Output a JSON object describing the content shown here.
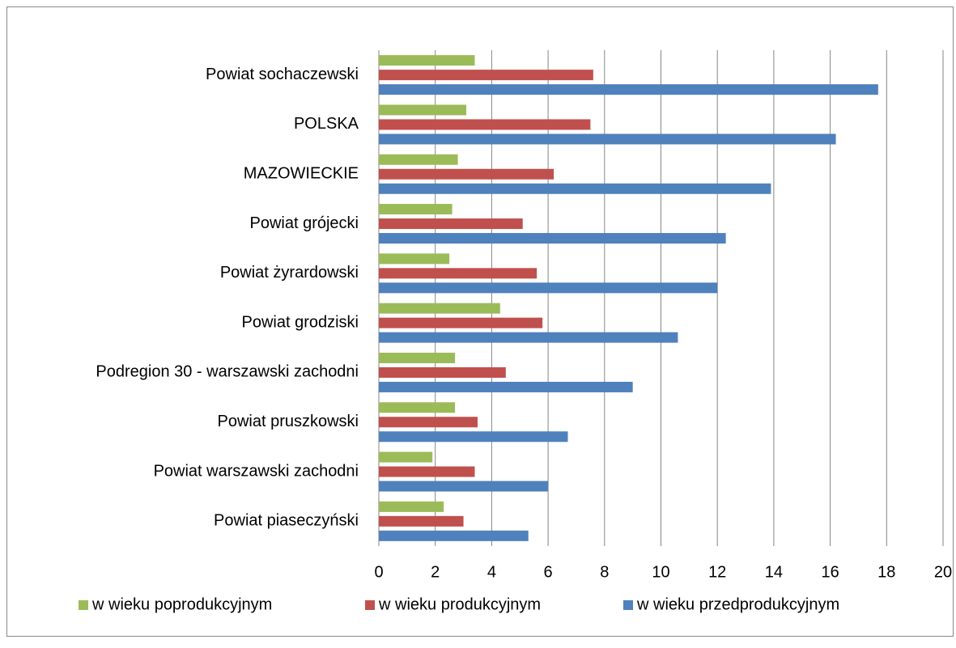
{
  "chart_data": {
    "type": "hbar",
    "categories": [
      "Powiat sochaczewski",
      "POLSKA",
      "MAZOWIECKIE",
      "Powiat grójecki",
      "Powiat żyrardowski",
      "Powiat grodziski",
      "Podregion 30 - warszawski zachodni",
      "Powiat pruszkowski",
      "Powiat warszawski zachodni",
      "Powiat piaseczyński"
    ],
    "series": [
      {
        "name": "w wieku poprodukcyjnym",
        "color": "#9bbb59",
        "values": [
          3.4,
          3.1,
          2.8,
          2.6,
          2.5,
          4.3,
          2.7,
          2.7,
          1.9,
          2.3
        ]
      },
      {
        "name": "w wieku produkcyjnym",
        "color": "#c0504d",
        "values": [
          7.6,
          7.5,
          6.2,
          5.1,
          5.6,
          5.8,
          4.5,
          3.5,
          3.4,
          3.0
        ]
      },
      {
        "name": "w wieku przedprodukcyjnym",
        "color": "#4f81bd",
        "values": [
          17.7,
          16.2,
          13.9,
          12.3,
          12.0,
          10.6,
          9.0,
          6.7,
          6.0,
          5.3
        ]
      }
    ],
    "xlim": [
      0,
      20
    ],
    "xticks": [
      0,
      2,
      4,
      6,
      8,
      10,
      12,
      14,
      16,
      18,
      20
    ],
    "grid": true,
    "legend": "bottom"
  }
}
